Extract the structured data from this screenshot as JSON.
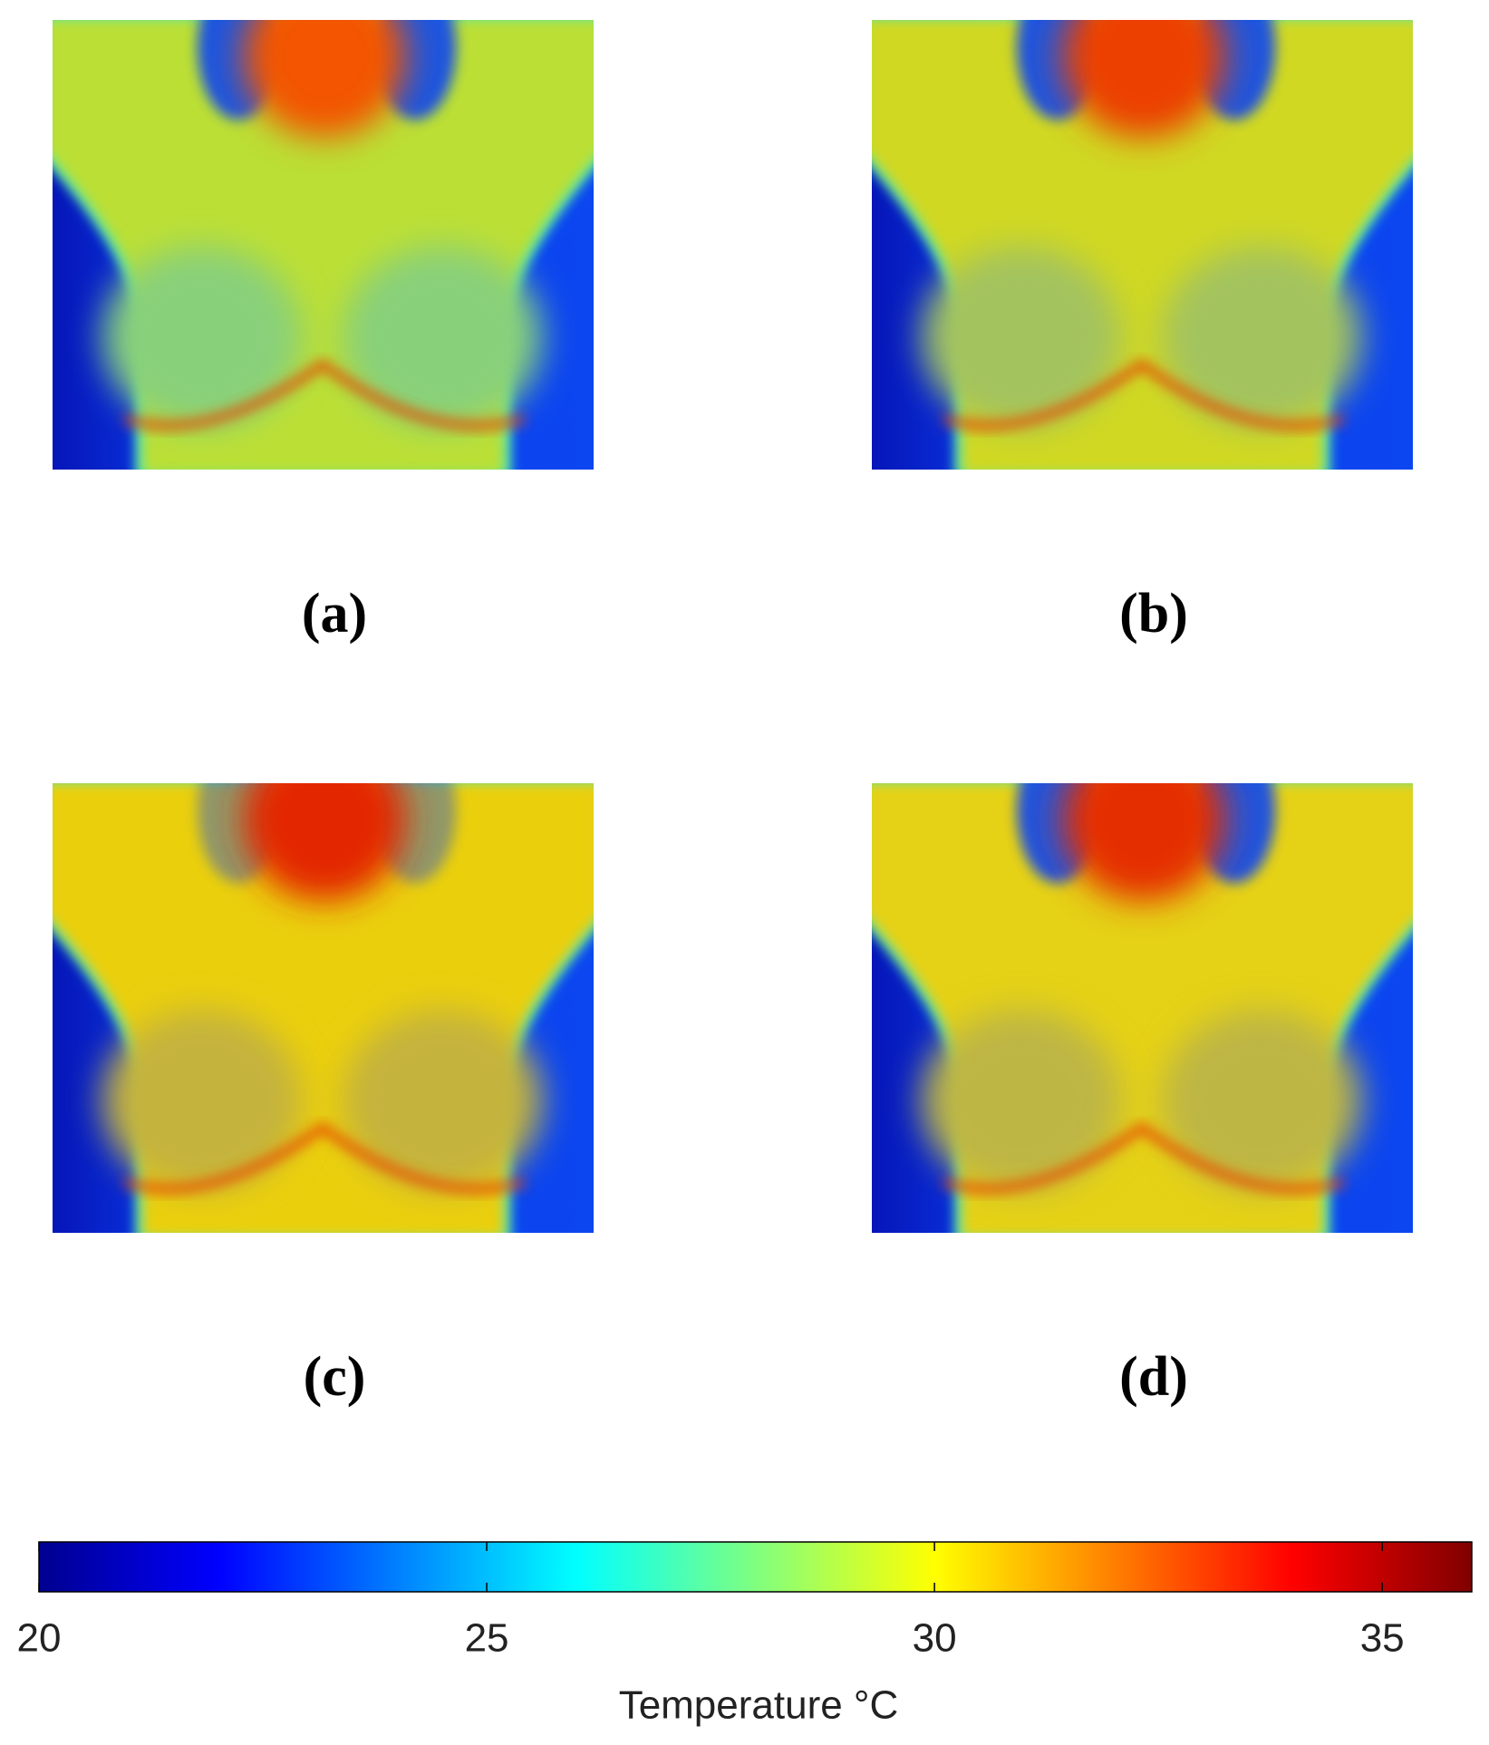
{
  "panels": [
    {
      "label": "(a)"
    },
    {
      "label": "(b)"
    },
    {
      "label": "(c)"
    },
    {
      "label": "(d)"
    }
  ],
  "colorbar": {
    "label": "Temperature °C",
    "lim": [
      20,
      36
    ],
    "ticks": [
      20,
      25,
      30,
      35
    ],
    "colormap": "jet"
  }
}
